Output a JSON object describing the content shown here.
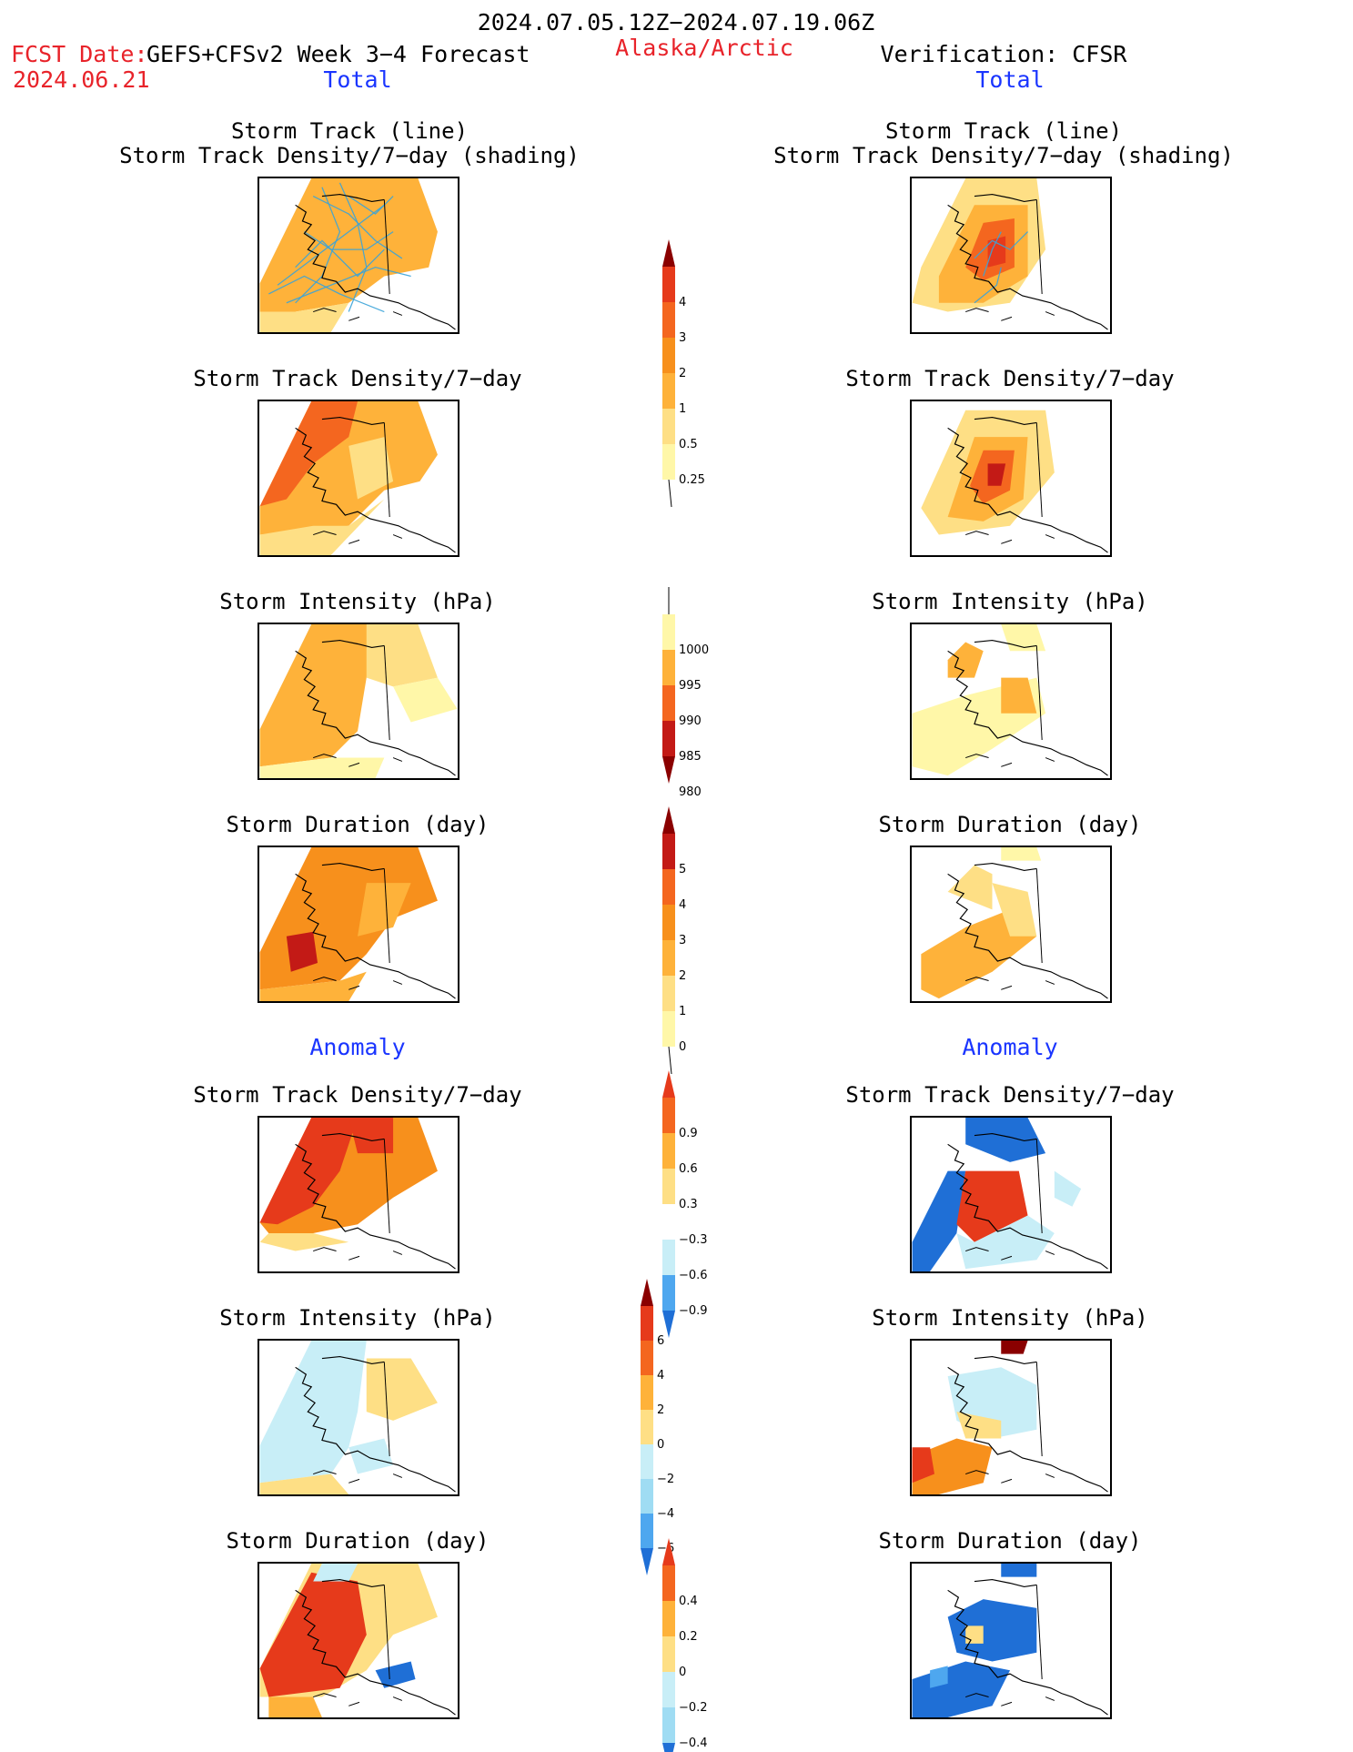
{
  "header": {
    "date_range": "2024.07.05.12Z−2024.07.19.06Z",
    "fcst_label": "FCST Date:",
    "model": "GEFS+CFSv2 Week 3−4 Forecast",
    "fcst_date": "2024.06.21",
    "region": "Alaska/Arctic",
    "verification": "Verification: CFSR"
  },
  "sections": {
    "left_total": "Total",
    "right_total": "Total",
    "left_anomaly": "Anomaly",
    "right_anomaly": "Anomaly"
  },
  "panel_titles": {
    "track_line": "Storm Track (line)",
    "track_shading": "Storm Track Density/7−day (shading)",
    "density": "Storm Track Density/7−day",
    "intensity": "Storm Intensity (hPa)",
    "duration": "Storm Duration (day)"
  },
  "colorbars": {
    "density_total": [
      "4",
      "3",
      "2",
      "1",
      "0.5",
      "0.25"
    ],
    "intensity_total": [
      "1000",
      "995",
      "990",
      "985",
      "980"
    ],
    "duration_total": [
      "5",
      "4",
      "3",
      "2",
      "1",
      "0"
    ],
    "density_anom": [
      "0.9",
      "0.6",
      "0.3",
      "−0.3",
      "−0.6",
      "−0.9"
    ],
    "intensity_anom": [
      "6",
      "4",
      "2",
      "0",
      "−2",
      "−4",
      "−6"
    ],
    "duration_anom": [
      "0.4",
      "0.2",
      "0",
      "−0.2",
      "−0.4"
    ]
  },
  "colors": {
    "c1": "#fff7a8",
    "c2": "#fedf85",
    "c3": "#feb23a",
    "c4": "#f7901c",
    "c5": "#f4661f",
    "c6": "#e63a1b",
    "c7": "#c31a16",
    "c8": "#8a0000",
    "b1": "#c8eef7",
    "b2": "#9fdcf3",
    "b3": "#4ea7ef",
    "b4": "#1f6fd6",
    "b5": "#1b55c2",
    "track": "#3aa3d8",
    "land_line": "#000000"
  }
}
